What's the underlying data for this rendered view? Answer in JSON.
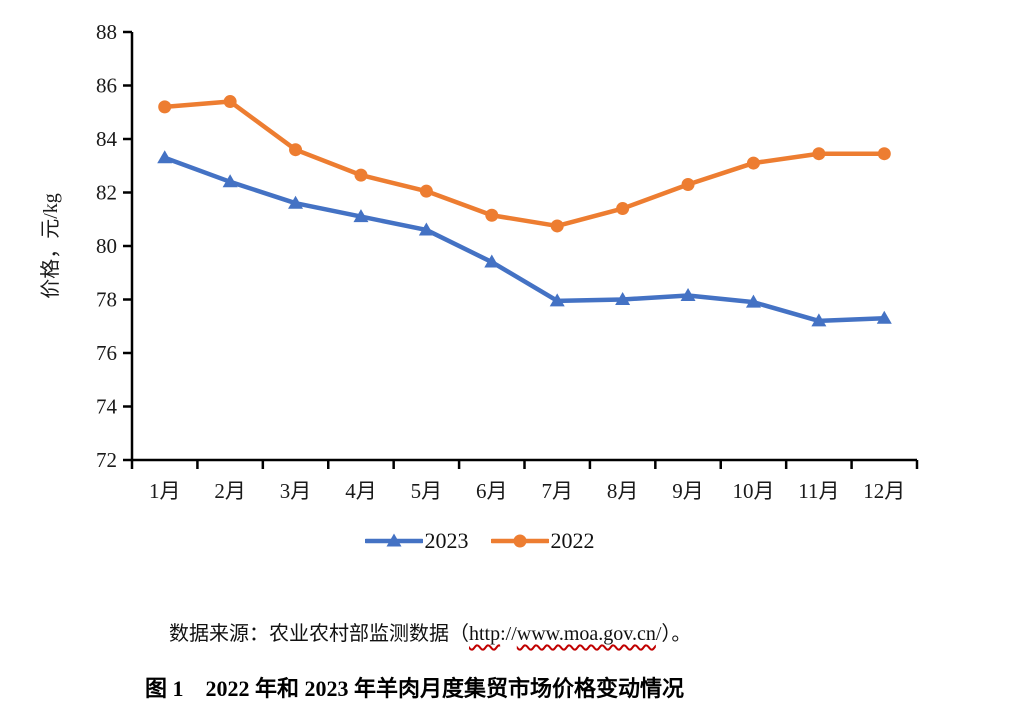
{
  "page": {
    "background": "#ffffff"
  },
  "chart_data": {
    "type": "line",
    "title": "",
    "xlabel": "",
    "ylabel": "价格，元/kg",
    "ylim": [
      72,
      88
    ],
    "yticks": [
      72,
      74,
      76,
      78,
      80,
      82,
      84,
      86,
      88
    ],
    "grid": false,
    "legend_position": "bottom",
    "axis_color": "#000000",
    "tick_label_color": "#1a1a1a",
    "categories": [
      "1月",
      "2月",
      "3月",
      "4月",
      "5月",
      "6月",
      "7月",
      "8月",
      "9月",
      "10月",
      "11月",
      "12月"
    ],
    "series": [
      {
        "name": "2023",
        "color": "#4472C4",
        "marker": "triangle",
        "values": [
          83.3,
          82.4,
          81.6,
          81.1,
          80.6,
          79.4,
          77.95,
          78.0,
          78.15,
          77.9,
          77.2,
          77.3
        ]
      },
      {
        "name": "2022",
        "color": "#ED7D31",
        "marker": "circle",
        "values": [
          85.2,
          85.4,
          83.6,
          82.65,
          82.05,
          81.15,
          80.75,
          81.4,
          82.3,
          83.1,
          83.45,
          83.45
        ]
      }
    ]
  },
  "source_note": {
    "squiggle_color": "#c00000",
    "segments": [
      {
        "text": "数据来源：农业农村部监测数据（",
        "wavy": false
      },
      {
        "text": "http",
        "wavy": true
      },
      {
        "text": "://",
        "wavy": false
      },
      {
        "text": "www.moa.gov.cn",
        "wavy": true
      },
      {
        "text": "/",
        "wavy": false
      },
      {
        "text": "）。",
        "wavy": false
      }
    ]
  },
  "caption": "图 1　2022 年和 2023 年羊肉月度集贸市场价格变动情况"
}
